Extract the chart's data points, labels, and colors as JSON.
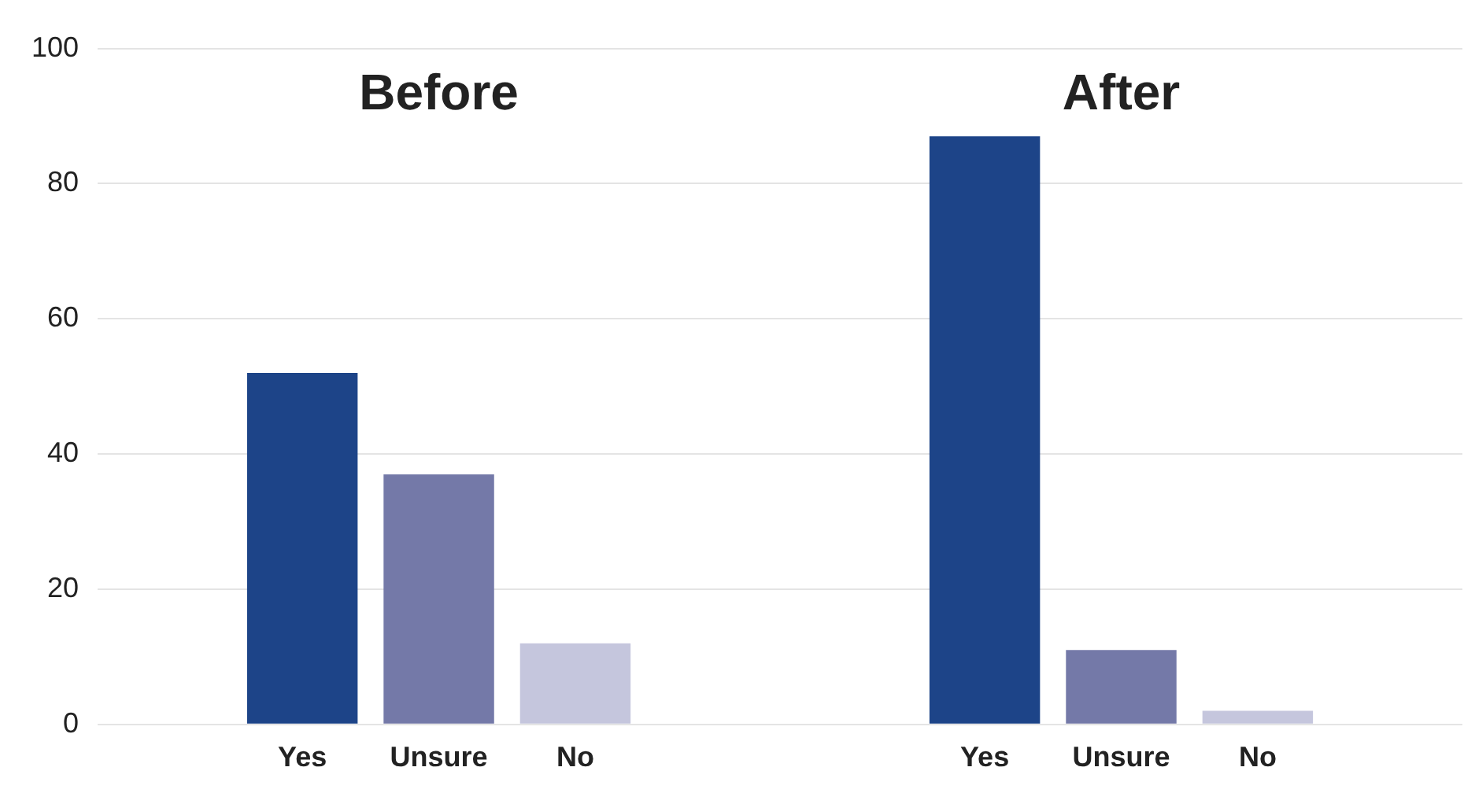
{
  "chart_data": {
    "type": "bar",
    "categories": [
      null,
      "Yes",
      "Unsure",
      "No",
      null,
      null,
      "Yes",
      "Unsure",
      "No",
      null
    ],
    "values": [
      null,
      52,
      37,
      12,
      null,
      null,
      87,
      11,
      2,
      null
    ],
    "colors": [
      "#1d4488",
      "#1d4488",
      "#7479a8",
      "#c5c6dd",
      "#1d4488",
      "#1d4488",
      "#1d4488",
      "#7479a8",
      "#c5c6dd",
      "#1d4488"
    ],
    "ylim": [
      0,
      100
    ],
    "yticks": [
      0,
      20,
      40,
      60,
      80,
      100
    ],
    "grid": "y",
    "legend": false,
    "annotations": [
      "Before",
      "After"
    ]
  }
}
